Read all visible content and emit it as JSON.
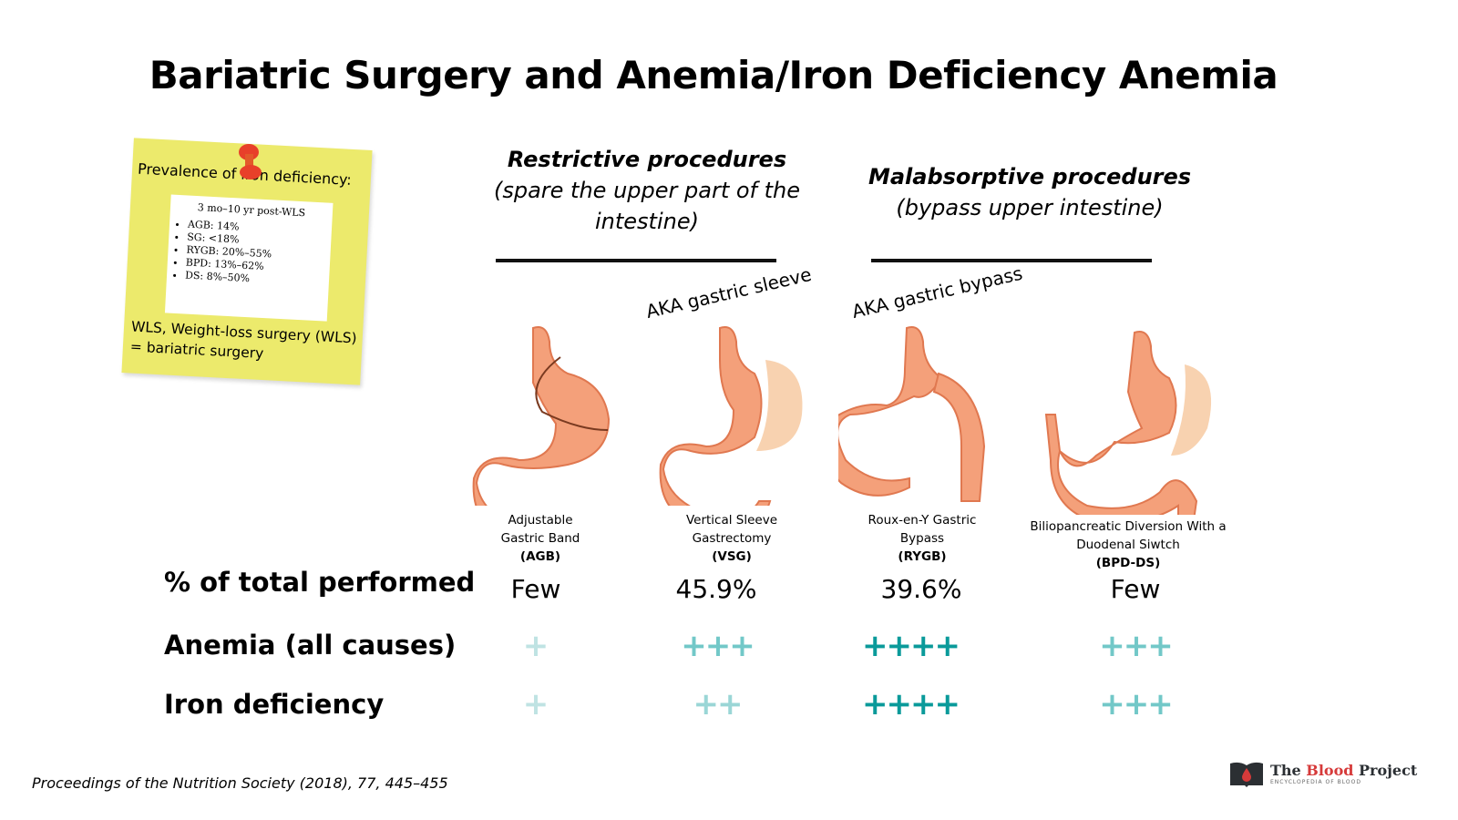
{
  "title": "Bariatric Surgery and Anemia/Iron Deficiency Anemia",
  "note": {
    "heading": "Prevalence of iron deficiency:",
    "subheading": "3 mo–10 yr post-WLS",
    "items": [
      "AGB: 14%",
      "SG: <18%",
      "RYGB: 20%–55%",
      "BPD: 13%–62%",
      "DS: 8%–50%"
    ],
    "footer": "WLS, Weight-loss surgery (WLS) = bariatric surgery"
  },
  "groups": [
    {
      "title": "Restrictive procedures",
      "subtitle": "(spare the upper part of the intestine)"
    },
    {
      "title": "Malabsorptive procedures",
      "subtitle": "(bypass upper intestine)"
    }
  ],
  "aka": [
    "AKA gastric sleeve",
    "AKA gastric bypass"
  ],
  "procedures": [
    {
      "name": "Adjustable Gastric Band",
      "abbr": "(AGB)",
      "percent": "Few",
      "anemia": "+",
      "iron": "+",
      "anemia_level": 1,
      "iron_level": 1
    },
    {
      "name": "Vertical Sleeve Gastrectomy",
      "abbr": "(VSG)",
      "percent": "45.9%",
      "anemia": "+++",
      "iron": "++",
      "anemia_level": 3,
      "iron_level": 2
    },
    {
      "name": "Roux-en-Y Gastric Bypass",
      "abbr": "(RYGB)",
      "percent": "39.6%",
      "anemia": "++++",
      "iron": "++++",
      "anemia_level": 4,
      "iron_level": 4
    },
    {
      "name": "Biliopancreatic Diversion With a Duodenal Siwtch",
      "abbr": "(BPD-DS)",
      "percent": "Few",
      "anemia": "+++",
      "iron": "+++",
      "anemia_level": 3,
      "iron_level": 3
    }
  ],
  "rows": {
    "percent": "% of total performed",
    "anemia": "Anemia (all causes)",
    "iron": "Iron deficiency"
  },
  "level_colors": {
    "1": "#bfe3e3",
    "2": "#9ad6d6",
    "3": "#72c8c8",
    "4": "#0a9a9a"
  },
  "citation": "Proceedings of the Nutrition Society (2018), 77, 445–455",
  "logo": {
    "the": "The ",
    "blood": "Blood",
    "project": " Project",
    "tagline": "ENCYCLOPEDIA OF BLOOD"
  }
}
